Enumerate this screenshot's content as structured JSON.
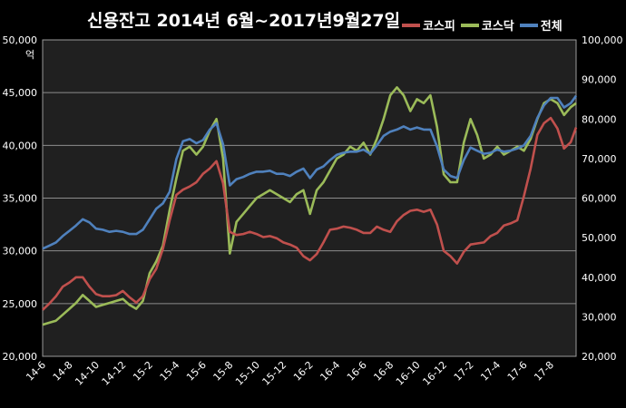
{
  "chart_data": {
    "type": "line",
    "title": "신용잔고  2014년 6월~2017년9월27일",
    "left_unit": "억",
    "x_ticks": [
      "14-6",
      "14-8",
      "14-10",
      "14-12",
      "15-2",
      "15-4",
      "15-6",
      "15-8",
      "15-10",
      "15-12",
      "16-2",
      "16-4",
      "16-6",
      "16-8",
      "16-10",
      "16-12",
      "17-2",
      "17-4",
      "17-6",
      "17-8"
    ],
    "y_left": {
      "ticks": [
        "20,000",
        "25,000",
        "30,000",
        "35,000",
        "40,000",
        "45,000",
        "50,000"
      ],
      "range": [
        20000,
        50000
      ]
    },
    "y_right": {
      "ticks": [
        "20,000",
        "30,000",
        "40,000",
        "50,000",
        "60,000",
        "70,000",
        "80,000",
        "90,000",
        "100,000"
      ],
      "range": [
        20000,
        100000
      ]
    },
    "grid": true,
    "legend_position": "top-right",
    "x": [
      0,
      0.5,
      1,
      1.5,
      2,
      2.5,
      3,
      3.5,
      4,
      4.5,
      5,
      5.5,
      6,
      6.5,
      7,
      7.5,
      8,
      8.5,
      9,
      9.5,
      10,
      10.5,
      11,
      11.5,
      12,
      12.5,
      13,
      13.5,
      14,
      14.5,
      15,
      15.5,
      16,
      16.5,
      17,
      17.5,
      18,
      18.5,
      19,
      19.5,
      20,
      20.5,
      21,
      21.5,
      22,
      22.5,
      23,
      23.5,
      24,
      24.5,
      25,
      25.5,
      26,
      26.5,
      27,
      27.5,
      28,
      28.5,
      29,
      29.5,
      30,
      30.5,
      31,
      31.5,
      32,
      32.5,
      33,
      33.5,
      34,
      34.5,
      35,
      35.5,
      36,
      36.5,
      37,
      37.5,
      38,
      38.5,
      39,
      39.5,
      39.9
    ],
    "series": [
      {
        "name": "코스피",
        "axis": "left",
        "color": "#c0504d",
        "values": [
          24400,
          25000,
          25700,
          26600,
          27000,
          27500,
          27500,
          26600,
          25900,
          25700,
          25700,
          25800,
          26200,
          25600,
          25100,
          25700,
          27300,
          28300,
          30200,
          32900,
          35300,
          35800,
          36100,
          36500,
          37300,
          37800,
          38500,
          36400,
          31800,
          31500,
          31600,
          31800,
          31600,
          31300,
          31400,
          31200,
          30800,
          30600,
          30300,
          29500,
          29100,
          29700,
          30800,
          32000,
          32100,
          32300,
          32200,
          32000,
          31700,
          31700,
          32300,
          32000,
          31800,
          32800,
          33400,
          33800,
          33900,
          33700,
          33900,
          32500,
          30000,
          29500,
          28800,
          29900,
          30600,
          30700,
          30800,
          31400,
          31700,
          32400,
          32600,
          32900,
          35200,
          37800,
          41000,
          42100,
          42600,
          41600,
          39700,
          40300,
          41700
        ]
      },
      {
        "name": "코스닥",
        "axis": "right",
        "color": "#9bbb59",
        "values": [
          28000,
          28500,
          29000,
          30500,
          32000,
          33500,
          35500,
          34000,
          32500,
          33000,
          33500,
          34000,
          34500,
          33000,
          32000,
          34000,
          41000,
          44000,
          48000,
          57000,
          65000,
          72000,
          73000,
          71000,
          73000,
          77000,
          80000,
          70000,
          46000,
          54000,
          56000,
          58000,
          60000,
          61000,
          62000,
          61000,
          60000,
          59000,
          61000,
          62000,
          56000,
          62000,
          64000,
          67000,
          70000,
          71000,
          73000,
          72000,
          74000,
          71000,
          75000,
          80000,
          86000,
          88000,
          86000,
          82000,
          85000,
          84000,
          86000,
          78000,
          66000,
          64000,
          64000,
          74000,
          80000,
          76000,
          70000,
          71000,
          73000,
          71000,
          72000,
          73000,
          72000,
          75000,
          80000,
          84000,
          85000,
          84000,
          81000,
          83000,
          84000
        ]
      },
      {
        "name": "전체",
        "axis": "left",
        "color": "#4f81bd",
        "values": [
          30200,
          30500,
          30800,
          31400,
          31900,
          32400,
          33000,
          32700,
          32100,
          32000,
          31800,
          31900,
          31800,
          31600,
          31600,
          32000,
          33000,
          34000,
          34500,
          35600,
          38700,
          40400,
          40600,
          40200,
          40500,
          41500,
          42100,
          40100,
          36200,
          36800,
          37000,
          37300,
          37500,
          37500,
          37600,
          37300,
          37300,
          37100,
          37500,
          37800,
          36900,
          37700,
          38000,
          38600,
          39100,
          39300,
          39400,
          39400,
          39600,
          39200,
          40000,
          40900,
          41300,
          41500,
          41800,
          41500,
          41700,
          41500,
          41500,
          39900,
          37700,
          37100,
          36900,
          38600,
          39800,
          39500,
          39200,
          39300,
          39600,
          39400,
          39500,
          39700,
          40000,
          40900,
          42600,
          43800,
          44500,
          44500,
          43600,
          44000,
          44700
        ]
      }
    ]
  }
}
